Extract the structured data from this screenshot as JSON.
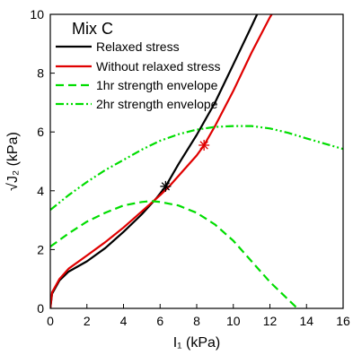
{
  "chart_data": {
    "type": "line",
    "title": "Mix C",
    "xlabel": "I₁ (kPa)",
    "ylabel": "√J₂ (kPa)",
    "xlim": [
      0,
      16
    ],
    "ylim": [
      0,
      10
    ],
    "x_ticks": [
      0,
      2,
      4,
      6,
      8,
      10,
      12,
      14,
      16
    ],
    "y_ticks": [
      0,
      2,
      4,
      6,
      8,
      10
    ],
    "grid": false,
    "legend_position": "top-left",
    "series": [
      {
        "name": "Relaxed stress",
        "color": "#000000",
        "style": "solid",
        "points": [
          [
            0,
            0
          ],
          [
            0.1,
            0.5
          ],
          [
            0.5,
            0.95
          ],
          [
            1,
            1.25
          ],
          [
            2,
            1.6
          ],
          [
            3,
            2.05
          ],
          [
            4,
            2.6
          ],
          [
            5,
            3.2
          ],
          [
            5.8,
            3.75
          ],
          [
            6.3,
            4.15
          ],
          [
            7,
            4.9
          ],
          [
            8,
            5.9
          ],
          [
            9,
            7.0
          ],
          [
            10,
            8.3
          ],
          [
            11,
            9.6
          ],
          [
            11.3,
            10
          ]
        ],
        "marker_x": 6.3,
        "marker_y": 4.15
      },
      {
        "name": "Without relaxed stress",
        "color": "#e00000",
        "style": "solid",
        "points": [
          [
            0,
            0
          ],
          [
            0.1,
            0.55
          ],
          [
            0.5,
            1.0
          ],
          [
            1,
            1.35
          ],
          [
            2,
            1.8
          ],
          [
            3,
            2.25
          ],
          [
            4,
            2.75
          ],
          [
            5,
            3.3
          ],
          [
            6,
            3.85
          ],
          [
            6.5,
            4.15
          ],
          [
            7,
            4.5
          ],
          [
            8,
            5.2
          ],
          [
            8.4,
            5.55
          ],
          [
            9,
            6.2
          ],
          [
            10,
            7.4
          ],
          [
            11,
            8.7
          ],
          [
            12,
            9.9
          ],
          [
            12.1,
            10
          ]
        ],
        "marker_x": 8.4,
        "marker_y": 5.55
      },
      {
        "name": "1hr strength envelope",
        "color": "#00dd00",
        "style": "dashed",
        "points": [
          [
            0,
            2.1
          ],
          [
            1,
            2.55
          ],
          [
            2,
            2.95
          ],
          [
            3,
            3.25
          ],
          [
            4,
            3.5
          ],
          [
            5,
            3.62
          ],
          [
            5.5,
            3.65
          ],
          [
            6,
            3.62
          ],
          [
            7,
            3.5
          ],
          [
            8,
            3.25
          ],
          [
            9,
            2.85
          ],
          [
            10,
            2.3
          ],
          [
            11,
            1.6
          ],
          [
            12,
            0.9
          ],
          [
            13,
            0.3
          ],
          [
            13.5,
            0
          ]
        ]
      },
      {
        "name": "2hr strength envelope",
        "color": "#00dd00",
        "style": "dash-dot-dot",
        "points": [
          [
            0,
            3.35
          ],
          [
            1,
            3.85
          ],
          [
            2,
            4.3
          ],
          [
            3,
            4.7
          ],
          [
            4,
            5.05
          ],
          [
            5,
            5.4
          ],
          [
            6,
            5.7
          ],
          [
            7,
            5.92
          ],
          [
            8,
            6.08
          ],
          [
            9,
            6.17
          ],
          [
            10,
            6.2
          ],
          [
            11,
            6.2
          ],
          [
            12,
            6.12
          ],
          [
            13,
            5.97
          ],
          [
            14,
            5.78
          ],
          [
            15,
            5.6
          ],
          [
            16,
            5.42
          ]
        ]
      }
    ]
  },
  "legend": {
    "title": "Mix C",
    "items": [
      "Relaxed stress",
      "Without relaxed stress",
      "1hr strength envelope",
      "2hr strength envelope"
    ]
  }
}
